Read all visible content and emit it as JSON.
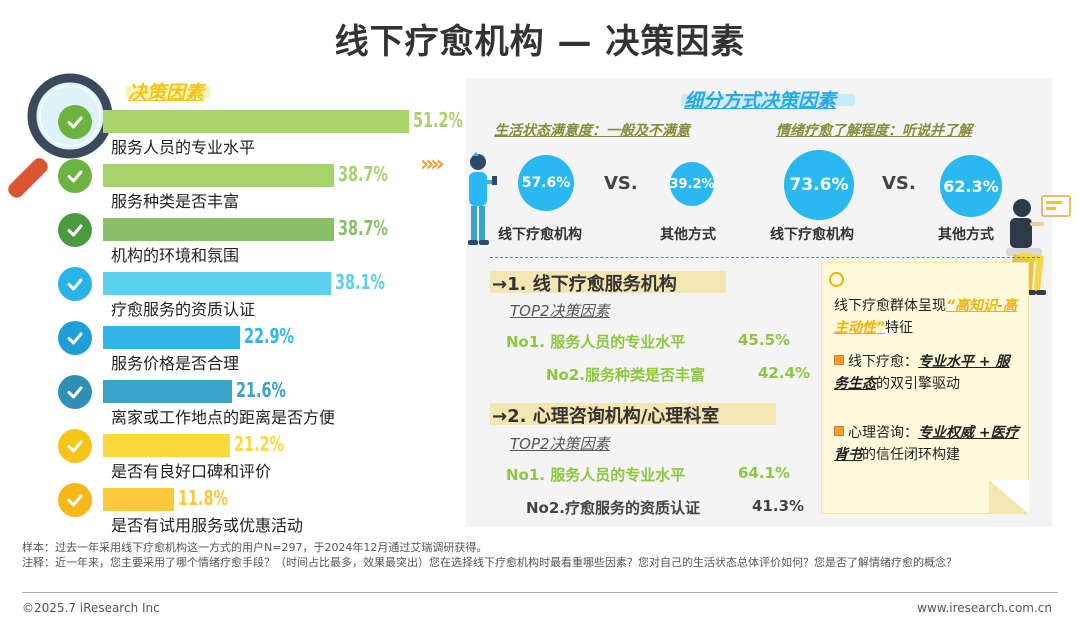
{
  "title": "线下疗愈机构 — 决策因素",
  "left": {
    "section_title": "决策因素"
  },
  "chart_data": {
    "type": "bar",
    "orientation": "horizontal",
    "title": "决策因素",
    "categories": [
      "服务人员的专业水平",
      "服务种类是否丰富",
      "机构的环境和氛围",
      "疗愈服务的资质认证",
      "服务价格是否合理",
      "离家或工作地点的距离是否方便",
      "是否有良好口碑和评价",
      "是否有试用服务或优惠活动"
    ],
    "values": [
      51.2,
      38.7,
      38.7,
      38.1,
      22.9,
      21.6,
      21.2,
      11.8
    ],
    "value_labels": [
      "51.2%",
      "38.7%",
      "38.7%",
      "38.1%",
      "22.9%",
      "21.6%",
      "21.2%",
      "11.8%"
    ],
    "colors": [
      "#a8d36b",
      "#a8d36b",
      "#8cc068",
      "#5bcfee",
      "#33b5ea",
      "#3aa3c8",
      "#fcd93d",
      "#fcc93a"
    ],
    "check_colors": [
      "#6cb33f",
      "#6cb33f",
      "#4a9a3f",
      "#2ab3e6",
      "#1e9fd8",
      "#2f8fb5",
      "#f5c518",
      "#f5b818"
    ],
    "xlim": [
      0,
      51.2
    ]
  },
  "right": {
    "section_title": "细分方式决策因素",
    "group1": {
      "heading": "生活状态满意度：一般及不满意",
      "a_value": "57.6%",
      "a_label": "线下疗愈机构",
      "vs": "VS.",
      "b_value": "39.2%",
      "b_label": "其他方式"
    },
    "group2": {
      "heading": "情绪疗愈了解程度：听说并了解",
      "a_value": "73.6%",
      "a_label": "线下疗愈机构",
      "vs": "VS.",
      "b_value": "62.3%",
      "b_label": "其他方式"
    },
    "block1": {
      "title": "→1. 线下疗愈服务机构",
      "top2": "TOP2决策因素",
      "no1": "No1. 服务人员的专业水平",
      "no1_val": "45.5%",
      "no2": "No2.服务种类是否丰富",
      "no2_val": "42.4%"
    },
    "block2": {
      "title": "→2. 心理咨询机构/心理科室",
      "top2": "TOP2决策因素",
      "no1": "No1. 服务人员的专业水平",
      "no1_val": "64.1%",
      "no2": "No2.疗愈服务的资质认证",
      "no2_val": "41.3%"
    },
    "note": {
      "line1_a": "线下疗愈群体呈现",
      "line1_b": "“高知识-高主动性”",
      "line1_c": "特征",
      "p1_a": "线下疗愈：",
      "p1_b": "专业水平 + 服务生态",
      "p1_c": "的双引擎驱动",
      "p2_a": "心理咨询：",
      "p2_b": "专业权威 +医疗背书",
      "p2_c": "的信任闭环构建"
    }
  },
  "footer": {
    "sample": "样本：过去一年采用线下疗愈机构这一方式的用户N=297，于2024年12月通过艾瑞调研获得。",
    "note": "注释：近一年来，您主要采用了哪个情绪疗愈手段？（时间占比最多，效果最突出）您在选择线下疗愈机构时最看重哪些因素？您对自己的生活状态总体评价如何？您是否了解情绪疗愈的概念？",
    "copyright": "©2025.7 iResearch Inc",
    "website": "www.iresearch.com.cn"
  }
}
